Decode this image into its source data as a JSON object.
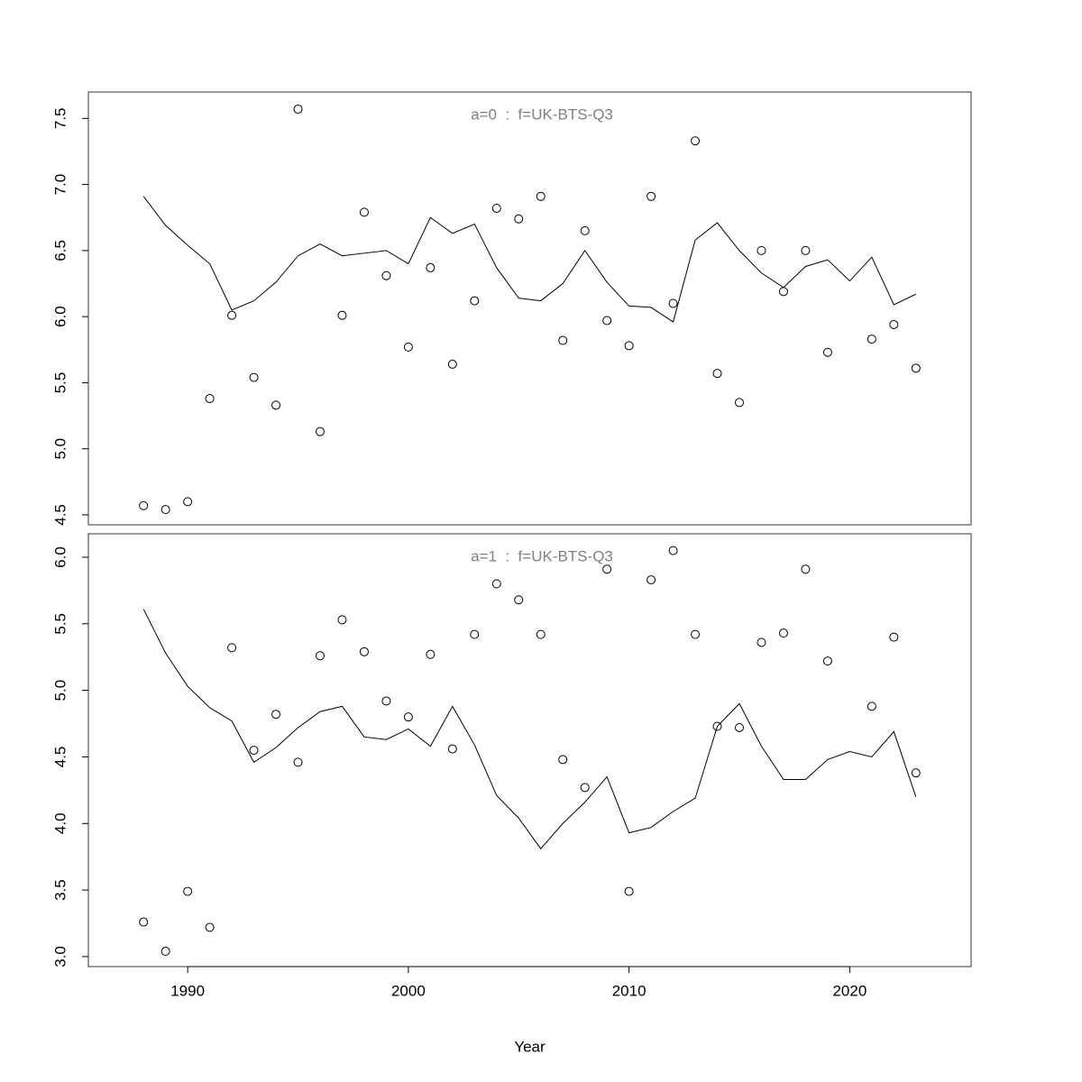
{
  "chart_data": [
    {
      "type": "line",
      "title": "a=0  :  f=UK-BTS-Q3",
      "title_color": "#808080",
      "x": [
        1988,
        1989,
        1990,
        1991,
        1992,
        1993,
        1994,
        1995,
        1996,
        1997,
        1998,
        1999,
        2000,
        2001,
        2002,
        2003,
        2004,
        2005,
        2006,
        2007,
        2008,
        2009,
        2010,
        2011,
        2012,
        2013,
        2014,
        2015,
        2016,
        2017,
        2018,
        2019,
        2020,
        2021,
        2022,
        2023
      ],
      "series": [
        {
          "style": "points",
          "color": "#000000",
          "values": [
            4.57,
            4.54,
            4.6,
            5.38,
            6.01,
            5.54,
            5.33,
            7.57,
            5.13,
            6.01,
            6.79,
            6.31,
            5.77,
            6.37,
            5.64,
            6.12,
            6.82,
            6.74,
            6.91,
            5.82,
            6.65,
            5.97,
            5.78,
            6.91,
            6.1,
            7.33,
            5.57,
            5.35,
            6.5,
            6.19,
            6.5,
            5.73,
            null,
            5.83,
            5.94,
            5.61
          ]
        },
        {
          "style": "line",
          "color": "#000000",
          "values": [
            6.91,
            6.69,
            6.54,
            6.4,
            6.05,
            6.12,
            6.26,
            6.46,
            6.55,
            6.46,
            6.48,
            6.5,
            6.4,
            6.75,
            6.63,
            6.7,
            6.37,
            6.14,
            6.12,
            6.25,
            6.5,
            6.26,
            6.08,
            6.07,
            5.96,
            6.58,
            6.71,
            6.5,
            6.33,
            6.22,
            6.38,
            6.43,
            6.27,
            6.45,
            6.09,
            6.17
          ]
        }
      ],
      "xlim": [
        1985.5,
        2025.5
      ],
      "ylim": [
        4.425,
        7.7
      ],
      "yticks": [
        4.5,
        {
          "value": 5,
          "label": "5.0"
        },
        5.5,
        {
          "value": 6,
          "label": "6.0"
        },
        6.5,
        {
          "value": 7,
          "label": "7.0"
        },
        7.5
      ]
    },
    {
      "type": "line",
      "title": "a=1  :  f=UK-BTS-Q3",
      "title_color": "#808080",
      "xlabel": "Year",
      "x": [
        1988,
        1989,
        1990,
        1991,
        1992,
        1993,
        1994,
        1995,
        1996,
        1997,
        1998,
        1999,
        2000,
        2001,
        2002,
        2003,
        2004,
        2005,
        2006,
        2007,
        2008,
        2009,
        2010,
        2011,
        2012,
        2013,
        2014,
        2015,
        2016,
        2017,
        2018,
        2019,
        2020,
        2021,
        2022,
        2023
      ],
      "series": [
        {
          "style": "points",
          "color": "#000000",
          "values": [
            3.26,
            3.04,
            3.49,
            3.22,
            5.32,
            4.55,
            4.82,
            4.46,
            5.26,
            5.53,
            5.29,
            4.92,
            4.8,
            5.27,
            4.56,
            5.42,
            5.8,
            5.68,
            5.42,
            4.48,
            4.27,
            5.91,
            3.49,
            5.83,
            6.05,
            5.42,
            4.73,
            4.72,
            5.36,
            5.43,
            5.91,
            5.22,
            null,
            4.88,
            5.4,
            4.38
          ]
        },
        {
          "style": "line",
          "color": "#000000",
          "values": [
            5.61,
            5.28,
            5.03,
            4.87,
            4.77,
            4.46,
            4.57,
            4.72,
            4.84,
            4.88,
            4.65,
            4.63,
            4.71,
            4.58,
            4.88,
            4.59,
            4.21,
            4.04,
            3.81,
            4.0,
            4.16,
            4.35,
            3.93,
            3.97,
            4.09,
            4.19,
            4.73,
            4.9,
            4.58,
            4.33,
            4.33,
            4.48,
            4.54,
            4.5,
            4.69,
            4.2
          ]
        }
      ],
      "xlim": [
        1985.5,
        2025.5
      ],
      "ylim": [
        2.925,
        6.176
      ],
      "xticks": [
        1990,
        2000,
        2010,
        2020
      ],
      "yticks": [
        {
          "value": 3,
          "label": "3.0"
        },
        3.5,
        {
          "value": 4,
          "label": "4.0"
        },
        4.5,
        {
          "value": 5,
          "label": "5.0"
        },
        5.5,
        {
          "value": 6,
          "label": "6.0"
        }
      ]
    }
  ]
}
